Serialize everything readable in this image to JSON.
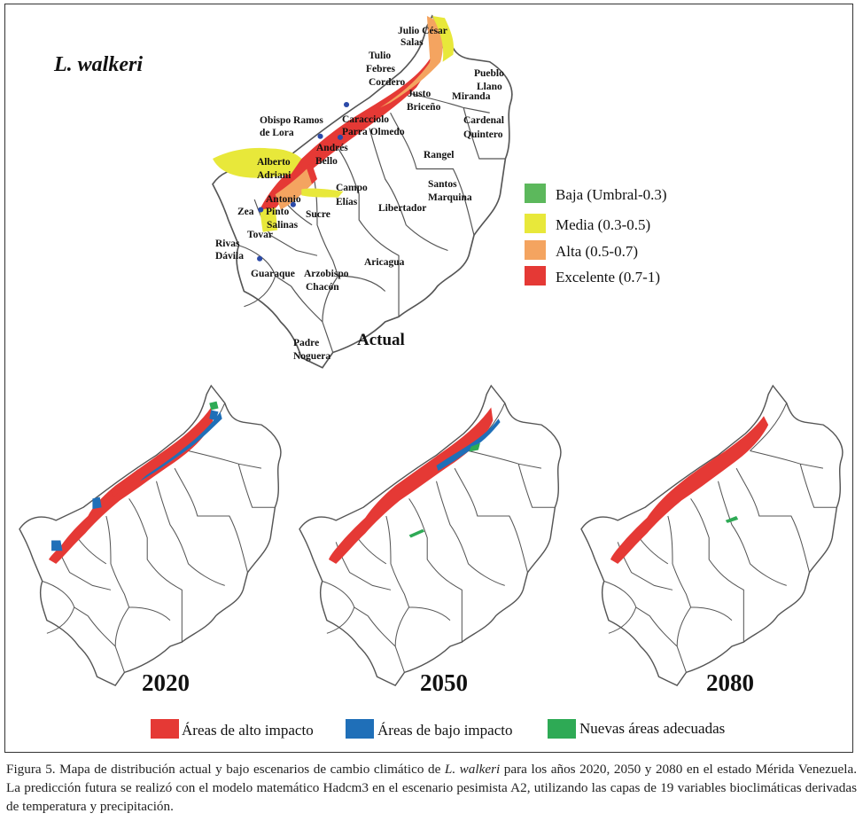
{
  "figure": {
    "title": "L. walkeri",
    "actual_label": "Actual",
    "suitability_legend": [
      {
        "label": "Baja  (Umbral-0.3)",
        "color": "#5cb85c"
      },
      {
        "label": "Media  (0.3-0.5)",
        "color": "#e8e83a"
      },
      {
        "label": "Alta  (0.5-0.7)",
        "color": "#f4a460"
      },
      {
        "label": "Excelente  (0.7-1)",
        "color": "#e53935"
      }
    ],
    "municipalities": [
      {
        "id": "julio",
        "label": "Julio  César"
      },
      {
        "id": "salas",
        "label": "Salas"
      },
      {
        "id": "tulio",
        "label": "Tulio"
      },
      {
        "id": "febres",
        "label": "Febres"
      },
      {
        "id": "cordero",
        "label": "Cordero"
      },
      {
        "id": "pueblo",
        "label": "Pueblo"
      },
      {
        "id": "llano",
        "label": "Llano"
      },
      {
        "id": "justo",
        "label": "Justo"
      },
      {
        "id": "briceno",
        "label": "Briceño"
      },
      {
        "id": "miranda",
        "label": "Miranda"
      },
      {
        "id": "obispo",
        "label": "Obispo Ramos"
      },
      {
        "id": "delora",
        "label": "de Lora"
      },
      {
        "id": "caracciolo",
        "label": "Caracciolo"
      },
      {
        "id": "parra",
        "label": "Parra Olmedo"
      },
      {
        "id": "cardenal",
        "label": "Cardenal"
      },
      {
        "id": "quintero",
        "label": "Quintero"
      },
      {
        "id": "andres",
        "label": "Andrés"
      },
      {
        "id": "bello",
        "label": "Bello"
      },
      {
        "id": "rangel",
        "label": "Rangel"
      },
      {
        "id": "alberto",
        "label": "Alberto"
      },
      {
        "id": "adriani",
        "label": "Adriani"
      },
      {
        "id": "santos",
        "label": "Santos"
      },
      {
        "id": "marquina",
        "label": "Marquina"
      },
      {
        "id": "campo",
        "label": "Campo"
      },
      {
        "id": "elias",
        "label": "Elías"
      },
      {
        "id": "antonio",
        "label": "Antonio"
      },
      {
        "id": "zea",
        "label": "Zea"
      },
      {
        "id": "pinto",
        "label": "Pinto"
      },
      {
        "id": "salinas",
        "label": "Salinas"
      },
      {
        "id": "sucre",
        "label": "Sucre"
      },
      {
        "id": "libertador",
        "label": "Libertador"
      },
      {
        "id": "tovar",
        "label": "Tovar"
      },
      {
        "id": "rivas",
        "label": "Rivas"
      },
      {
        "id": "davila",
        "label": "Dávila"
      },
      {
        "id": "aricagua",
        "label": "Aricagua"
      },
      {
        "id": "guaraque",
        "label": "Guaraque"
      },
      {
        "id": "arzobispo",
        "label": "Arzobispo"
      },
      {
        "id": "chacon",
        "label": "Chacón"
      },
      {
        "id": "padre",
        "label": "Padre"
      },
      {
        "id": "noguera",
        "label": "Noguera"
      }
    ],
    "scenarios": [
      {
        "year": "2020",
        "has_low_impact": true,
        "new_areas": true
      },
      {
        "year": "2050",
        "has_low_impact": true,
        "new_areas": true
      },
      {
        "year": "2080",
        "has_low_impact": false,
        "new_areas": true
      }
    ],
    "impact_legend": [
      {
        "label": "Áreas de alto impacto",
        "color": "#e53935"
      },
      {
        "label": "Áreas de bajo impacto",
        "color": "#1f6fb8"
      },
      {
        "label": "Nuevas  áreas adecuadas",
        "color": "#2eaa55"
      }
    ]
  },
  "caption": {
    "prefix": "Figura 5. Mapa de distribución actual y bajo escenarios de cambio climático de ",
    "species": "L. walkeri",
    "suffix": " para los años 2020, 2050 y 2080 en el estado Mérida Venezuela. La predicción futura se realizó con el modelo matemático Hadcm3 en el escenario pesimista A2, utilizando las capas de 19 variables bioclimáticas derivadas de temperatura y precipitación."
  }
}
